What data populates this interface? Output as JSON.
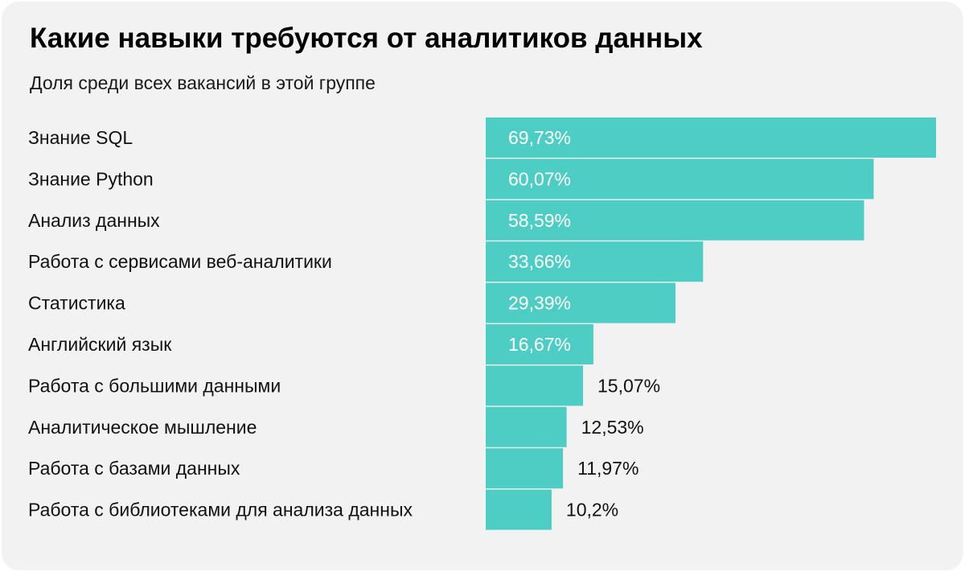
{
  "chart_data": {
    "type": "bar",
    "orientation": "horizontal",
    "title": "Какие навыки требуются от аналитиков данных",
    "subtitle": "Доля среди всех вакансий в этой группе",
    "categories": [
      "Знание SQL",
      "Знание Python",
      "Анализ данных",
      "Работа с сервисами веб-аналитики",
      "Статистика",
      "Английский язык",
      "Работа с большими данными",
      "Аналитическое мышление",
      "Работа с базами данных",
      "Работа с библиотеками для анализа данных"
    ],
    "values": [
      69.73,
      60.07,
      58.59,
      33.66,
      29.39,
      16.67,
      15.07,
      12.53,
      11.97,
      10.2
    ],
    "value_labels": [
      "69,73%",
      "60,07%",
      "58,59%",
      "33,66%",
      "29,39%",
      "16,67%",
      "15,07%",
      "12,53%",
      "11,97%",
      "10,2%"
    ],
    "xlim": [
      0,
      69.73
    ],
    "grid": false,
    "legend": "none",
    "colors": {
      "bar": "#4ecdc4",
      "label_inside": "#ffffff",
      "label_outside": "#111111",
      "background": "#f2f2f2"
    }
  }
}
